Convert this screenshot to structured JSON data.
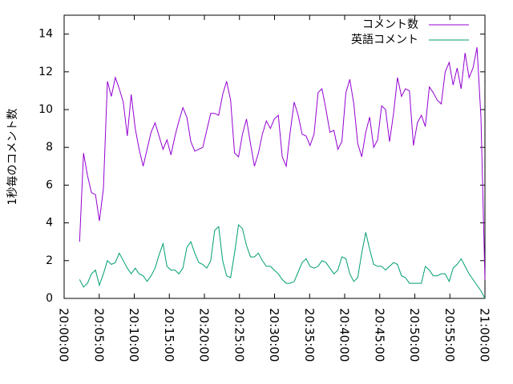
{
  "chart_data": {
    "type": "line",
    "ylabel": "1秒毎のコメント数",
    "x": [
      132,
      166,
      200,
      234,
      268,
      302,
      336,
      370,
      404,
      438,
      472,
      506,
      540,
      574,
      608,
      642,
      676,
      710,
      744,
      778,
      812,
      846,
      880,
      914,
      948,
      982,
      1016,
      1050,
      1084,
      1118,
      1152,
      1186,
      1220,
      1254,
      1288,
      1322,
      1356,
      1390,
      1424,
      1458,
      1492,
      1526,
      1560,
      1594,
      1628,
      1662,
      1696,
      1730,
      1764,
      1798,
      1832,
      1866,
      1900,
      1934,
      1968,
      2002,
      2036,
      2070,
      2104,
      2138,
      2172,
      2206,
      2240,
      2274,
      2308,
      2342,
      2376,
      2410,
      2444,
      2478,
      2512,
      2546,
      2580,
      2614,
      2648,
      2682,
      2716,
      2750,
      2784,
      2818,
      2852,
      2886,
      2920,
      2954,
      2988,
      3022,
      3056,
      3090,
      3124,
      3158,
      3192,
      3226,
      3260,
      3294,
      3328,
      3362,
      3396,
      3430,
      3464,
      3498,
      3532,
      3566,
      3600
    ],
    "series": [
      {
        "name": "コメント数",
        "color": "#9400d3",
        "values": [
          3.0,
          7.7,
          6.5,
          5.6,
          5.5,
          4.1,
          5.8,
          11.5,
          10.7,
          11.7,
          11.1,
          10.4,
          8.6,
          10.8,
          9.0,
          7.9,
          7.0,
          7.9,
          8.8,
          9.3,
          8.6,
          7.9,
          8.4,
          7.6,
          8.6,
          9.4,
          10.1,
          9.6,
          8.3,
          7.8,
          7.9,
          8.0,
          8.9,
          9.8,
          9.8,
          9.7,
          10.8,
          11.5,
          10.5,
          7.7,
          7.5,
          8.7,
          9.5,
          8.2,
          7.0,
          7.7,
          8.7,
          9.4,
          9.0,
          9.5,
          9.7,
          7.5,
          7.0,
          8.8,
          10.4,
          9.7,
          8.7,
          8.6,
          8.1,
          8.7,
          10.9,
          11.1,
          10.0,
          8.8,
          8.9,
          7.9,
          8.3,
          10.9,
          11.6,
          10.3,
          8.2,
          7.5,
          8.8,
          9.6,
          8.0,
          8.4,
          10.2,
          10.0,
          8.3,
          9.8,
          11.7,
          10.7,
          11.1,
          11.0,
          8.1,
          9.3,
          9.7,
          9.1,
          11.2,
          10.9,
          10.5,
          10.3,
          12.0,
          12.5,
          11.3,
          12.2,
          11.1,
          13.0,
          11.7,
          12.2,
          13.3,
          9.6,
          1.0
        ]
      },
      {
        "name": "英語コメント",
        "color": "#009e73",
        "values": [
          1.0,
          0.6,
          0.8,
          1.3,
          1.5,
          0.7,
          1.3,
          2.0,
          1.8,
          1.9,
          2.4,
          2.0,
          1.6,
          1.3,
          1.6,
          1.3,
          1.2,
          0.9,
          1.2,
          1.6,
          2.3,
          2.9,
          1.7,
          1.5,
          1.5,
          1.3,
          1.6,
          2.7,
          3.0,
          2.4,
          1.9,
          1.8,
          1.6,
          2.0,
          3.6,
          3.8,
          2.0,
          1.2,
          1.1,
          2.4,
          3.9,
          3.7,
          2.8,
          2.2,
          2.2,
          2.4,
          2.0,
          1.7,
          1.7,
          1.5,
          1.3,
          1.0,
          0.8,
          0.8,
          0.9,
          1.4,
          1.9,
          2.1,
          1.7,
          1.6,
          1.7,
          2.0,
          1.9,
          1.6,
          1.3,
          1.5,
          2.2,
          2.1,
          1.3,
          0.9,
          1.1,
          2.4,
          3.5,
          2.6,
          1.8,
          1.7,
          1.7,
          1.5,
          1.7,
          1.9,
          1.8,
          1.2,
          1.1,
          0.8,
          0.8,
          0.8,
          0.8,
          1.7,
          1.5,
          1.2,
          1.2,
          1.3,
          1.3,
          0.9,
          1.6,
          1.8,
          2.1,
          1.7,
          1.3,
          1.0,
          0.7,
          0.4,
          0.0
        ]
      }
    ],
    "xlim": [
      0,
      3600
    ],
    "xticks": [
      {
        "value": 0,
        "label": "20:00:00"
      },
      {
        "value": 300,
        "label": "20:05:00"
      },
      {
        "value": 600,
        "label": "20:10:00"
      },
      {
        "value": 900,
        "label": "20:15:00"
      },
      {
        "value": 1200,
        "label": "20:20:00"
      },
      {
        "value": 1500,
        "label": "20:25:00"
      },
      {
        "value": 1800,
        "label": "20:30:00"
      },
      {
        "value": 2100,
        "label": "20:35:00"
      },
      {
        "value": 2400,
        "label": "20:40:00"
      },
      {
        "value": 2700,
        "label": "20:45:00"
      },
      {
        "value": 3000,
        "label": "20:50:00"
      },
      {
        "value": 3300,
        "label": "20:55:00"
      },
      {
        "value": 3600,
        "label": "21:00:00"
      }
    ],
    "ylim": [
      0,
      15
    ],
    "yticks": [
      0,
      2,
      4,
      6,
      8,
      10,
      12,
      14
    ],
    "legend": "top right"
  }
}
